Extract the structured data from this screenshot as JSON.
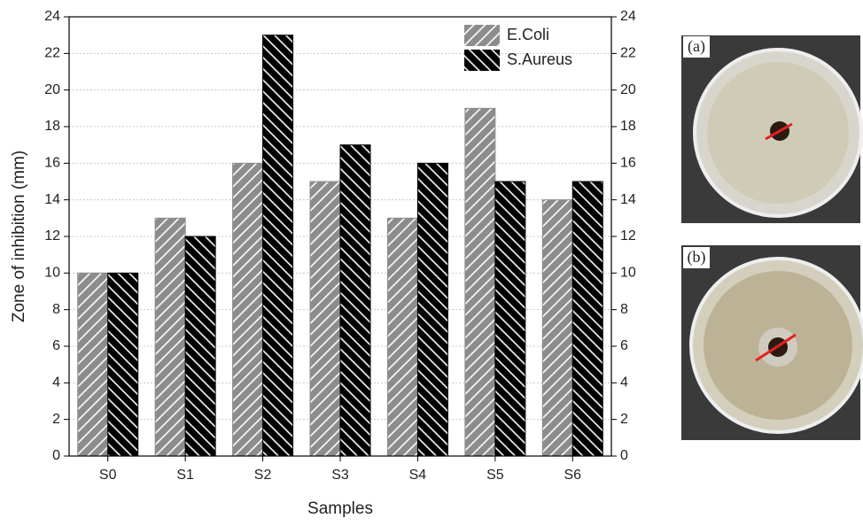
{
  "chart_data": {
    "type": "bar",
    "xlabel": "Samples",
    "ylabel": "Zone of inhibition (mm)",
    "categories": [
      "S0",
      "S1",
      "S2",
      "S3",
      "S4",
      "S5",
      "S6"
    ],
    "series": [
      {
        "name": "E.Coli",
        "color": "#8c8c8c",
        "values": [
          10,
          13,
          16,
          15,
          13,
          19,
          14
        ]
      },
      {
        "name": "S.Aureus",
        "color": "#000000",
        "values": [
          10,
          12,
          23,
          17,
          16,
          15,
          15
        ]
      }
    ],
    "ylim": [
      0,
      24
    ],
    "yticks": [
      0,
      2,
      4,
      6,
      8,
      10,
      12,
      14,
      16,
      18,
      20,
      22,
      24
    ],
    "y2lim": [
      0,
      24
    ],
    "y2ticks": [
      0,
      2,
      4,
      6,
      8,
      10,
      12,
      14,
      16,
      18,
      20,
      22,
      24
    ],
    "grid": true,
    "legend": "upper right"
  },
  "images": [
    {
      "label": "(a)"
    },
    {
      "label": "(b)"
    }
  ]
}
